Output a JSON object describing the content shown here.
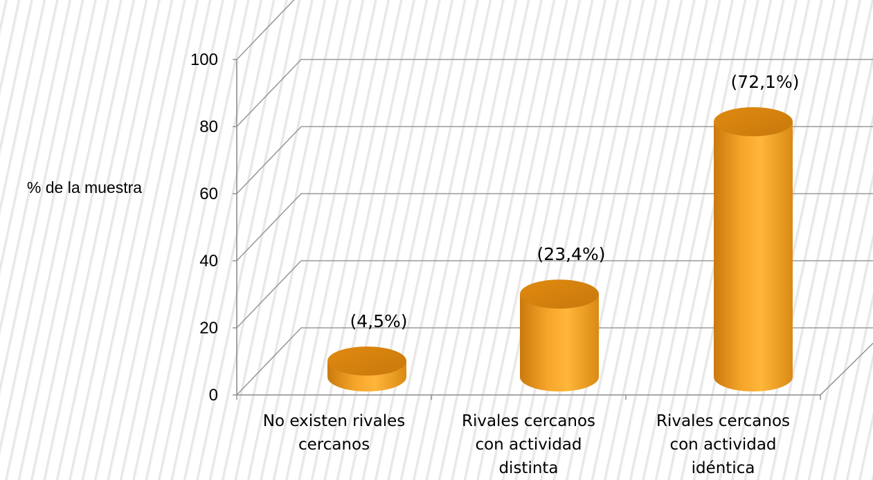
{
  "chart_data": {
    "type": "bar",
    "style": "3d-cylinder",
    "categories": [
      [
        "No existen rivales",
        "cercanos"
      ],
      [
        "Rivales cercanos",
        "con actividad",
        "distinta"
      ],
      [
        "Rivales cercanos",
        "con actividad",
        "idéntica"
      ]
    ],
    "values": [
      4.5,
      23.4,
      72.1
    ],
    "data_labels": [
      "(4,5%)",
      "(23,4%)",
      "(72,1%)"
    ],
    "ylabel": "% de la muestra",
    "ylim": [
      0,
      100
    ],
    "yticks": [
      0,
      20,
      40,
      60,
      80,
      100
    ],
    "grid": true,
    "colors": {
      "bar": "#f5a623",
      "bar_dark": "#c9780a",
      "bar_top": "#e69412",
      "grid": "#9a9a9a",
      "axis": "#8c8c8c"
    }
  }
}
